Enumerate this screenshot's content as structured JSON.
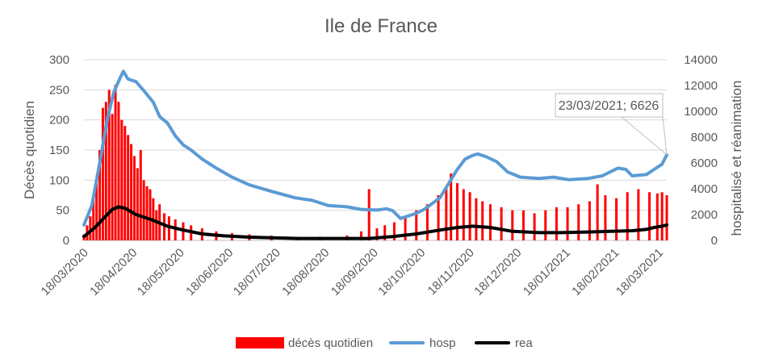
{
  "chart_data": {
    "type": "bar+line",
    "title": "Ile de France",
    "ylabel": "Décès quotidien",
    "y2label": "hospitalisé et réanimation",
    "ylim": [
      0,
      300
    ],
    "y2lim": [
      0,
      14000
    ],
    "yticks": [
      "0",
      "50",
      "100",
      "150",
      "200",
      "250",
      "300"
    ],
    "y2ticks": [
      "0",
      "2000",
      "4000",
      "6000",
      "8000",
      "10000",
      "12000",
      "14000"
    ],
    "xticks": [
      "18/03/2020",
      "18/04/2020",
      "18/05/2020",
      "18/06/2020",
      "18/07/2020",
      "18/08/2020",
      "18/09/2020",
      "18/10/2020",
      "18/11/2020",
      "18/12/2020",
      "18/01/2021",
      "18/02/2021",
      "18/03/2021"
    ],
    "x_start": "2020-03-18",
    "x_end": "2021-03-23",
    "legend": [
      "décès quotidien",
      "hosp",
      "rea"
    ],
    "legend_position": "bottom",
    "annotation": {
      "text": "23/03/2021; 6626",
      "x": "2021-03-23",
      "y": 6626
    },
    "colors": {
      "deces": "#ff0000",
      "hosp": "#5b9bd5",
      "rea": "#000000",
      "axis": "#595959",
      "grid": "#d9d9d9"
    },
    "series": [
      {
        "name": "décès quotidien",
        "axis": "left",
        "style": "bar",
        "points": [
          [
            "2020-03-18",
            10
          ],
          [
            "2020-03-20",
            25
          ],
          [
            "2020-03-22",
            40
          ],
          [
            "2020-03-24",
            70
          ],
          [
            "2020-03-26",
            100
          ],
          [
            "2020-03-28",
            150
          ],
          [
            "2020-03-30",
            220
          ],
          [
            "2020-04-01",
            230
          ],
          [
            "2020-04-03",
            250
          ],
          [
            "2020-04-05",
            210
          ],
          [
            "2020-04-07",
            258
          ],
          [
            "2020-04-09",
            230
          ],
          [
            "2020-04-11",
            200
          ],
          [
            "2020-04-13",
            190
          ],
          [
            "2020-04-15",
            175
          ],
          [
            "2020-04-17",
            160
          ],
          [
            "2020-04-19",
            140
          ],
          [
            "2020-04-21",
            120
          ],
          [
            "2020-04-23",
            150
          ],
          [
            "2020-04-25",
            100
          ],
          [
            "2020-04-27",
            90
          ],
          [
            "2020-04-29",
            85
          ],
          [
            "2020-05-01",
            70
          ],
          [
            "2020-05-03",
            50
          ],
          [
            "2020-05-05",
            60
          ],
          [
            "2020-05-08",
            45
          ],
          [
            "2020-05-11",
            40
          ],
          [
            "2020-05-15",
            35
          ],
          [
            "2020-05-20",
            30
          ],
          [
            "2020-05-25",
            25
          ],
          [
            "2020-06-01",
            20
          ],
          [
            "2020-06-10",
            15
          ],
          [
            "2020-06-20",
            12
          ],
          [
            "2020-07-01",
            10
          ],
          [
            "2020-07-15",
            8
          ],
          [
            "2020-08-01",
            6
          ],
          [
            "2020-08-15",
            6
          ],
          [
            "2020-09-01",
            8
          ],
          [
            "2020-09-10",
            15
          ],
          [
            "2020-09-15",
            85
          ],
          [
            "2020-09-20",
            20
          ],
          [
            "2020-09-25",
            25
          ],
          [
            "2020-10-01",
            30
          ],
          [
            "2020-10-08",
            40
          ],
          [
            "2020-10-15",
            50
          ],
          [
            "2020-10-22",
            60
          ],
          [
            "2020-10-29",
            75
          ],
          [
            "2020-11-03",
            90
          ],
          [
            "2020-11-06",
            111
          ],
          [
            "2020-11-10",
            95
          ],
          [
            "2020-11-14",
            85
          ],
          [
            "2020-11-18",
            80
          ],
          [
            "2020-11-22",
            70
          ],
          [
            "2020-11-26",
            65
          ],
          [
            "2020-12-01",
            60
          ],
          [
            "2020-12-08",
            55
          ],
          [
            "2020-12-15",
            50
          ],
          [
            "2020-12-22",
            50
          ],
          [
            "2020-12-29",
            45
          ],
          [
            "2021-01-05",
            50
          ],
          [
            "2021-01-12",
            55
          ],
          [
            "2021-01-19",
            55
          ],
          [
            "2021-01-26",
            60
          ],
          [
            "2021-02-02",
            65
          ],
          [
            "2021-02-07",
            93
          ],
          [
            "2021-02-12",
            75
          ],
          [
            "2021-02-19",
            70
          ],
          [
            "2021-02-26",
            80
          ],
          [
            "2021-03-05",
            85
          ],
          [
            "2021-03-12",
            80
          ],
          [
            "2021-03-17",
            78
          ],
          [
            "2021-03-20",
            80
          ],
          [
            "2021-03-23",
            75
          ]
        ]
      },
      {
        "name": "hosp",
        "axis": "right",
        "style": "line",
        "points": [
          [
            "2020-03-18",
            1200
          ],
          [
            "2020-03-23",
            2700
          ],
          [
            "2020-03-28",
            6000
          ],
          [
            "2020-04-02",
            9500
          ],
          [
            "2020-04-06",
            11500
          ],
          [
            "2020-04-10",
            12600
          ],
          [
            "2020-04-12",
            13100
          ],
          [
            "2020-04-15",
            12500
          ],
          [
            "2020-04-20",
            12300
          ],
          [
            "2020-04-25",
            11600
          ],
          [
            "2020-05-01",
            10700
          ],
          [
            "2020-05-05",
            9600
          ],
          [
            "2020-05-10",
            9100
          ],
          [
            "2020-05-15",
            8100
          ],
          [
            "2020-05-20",
            7400
          ],
          [
            "2020-05-25",
            7000
          ],
          [
            "2020-06-01",
            6300
          ],
          [
            "2020-06-10",
            5600
          ],
          [
            "2020-06-20",
            4900
          ],
          [
            "2020-07-01",
            4300
          ],
          [
            "2020-07-15",
            3800
          ],
          [
            "2020-07-30",
            3300
          ],
          [
            "2020-08-10",
            3100
          ],
          [
            "2020-08-20",
            2700
          ],
          [
            "2020-09-01",
            2600
          ],
          [
            "2020-09-10",
            2400
          ],
          [
            "2020-09-20",
            2350
          ],
          [
            "2020-09-26",
            2450
          ],
          [
            "2020-09-30",
            2300
          ],
          [
            "2020-10-05",
            1700
          ],
          [
            "2020-10-15",
            2100
          ],
          [
            "2020-10-20",
            2400
          ],
          [
            "2020-10-30",
            3300
          ],
          [
            "2020-11-05",
            4500
          ],
          [
            "2020-11-10",
            5500
          ],
          [
            "2020-11-15",
            6300
          ],
          [
            "2020-11-20",
            6600
          ],
          [
            "2020-11-23",
            6700
          ],
          [
            "2020-11-28",
            6500
          ],
          [
            "2020-12-05",
            6100
          ],
          [
            "2020-12-12",
            5300
          ],
          [
            "2020-12-20",
            4900
          ],
          [
            "2021-01-01",
            4800
          ],
          [
            "2021-01-10",
            4900
          ],
          [
            "2021-01-20",
            4700
          ],
          [
            "2021-02-01",
            4800
          ],
          [
            "2021-02-10",
            5000
          ],
          [
            "2021-02-20",
            5600
          ],
          [
            "2021-02-25",
            5500
          ],
          [
            "2021-03-01",
            5000
          ],
          [
            "2021-03-10",
            5100
          ],
          [
            "2021-03-15",
            5500
          ],
          [
            "2021-03-20",
            5900
          ],
          [
            "2021-03-23",
            6626
          ]
        ]
      },
      {
        "name": "rea",
        "axis": "right",
        "style": "line",
        "points": [
          [
            "2020-03-18",
            300
          ],
          [
            "2020-03-25",
            1000
          ],
          [
            "2020-04-01",
            1900
          ],
          [
            "2020-04-05",
            2400
          ],
          [
            "2020-04-09",
            2600
          ],
          [
            "2020-04-13",
            2500
          ],
          [
            "2020-04-20",
            2000
          ],
          [
            "2020-04-30",
            1600
          ],
          [
            "2020-05-10",
            1100
          ],
          [
            "2020-05-20",
            800
          ],
          [
            "2020-06-01",
            500
          ],
          [
            "2020-06-15",
            350
          ],
          [
            "2020-07-01",
            250
          ],
          [
            "2020-07-15",
            200
          ],
          [
            "2020-08-01",
            150
          ],
          [
            "2020-09-01",
            150
          ],
          [
            "2020-09-15",
            150
          ],
          [
            "2020-09-30",
            300
          ],
          [
            "2020-10-15",
            500
          ],
          [
            "2020-10-30",
            800
          ],
          [
            "2020-11-10",
            1000
          ],
          [
            "2020-11-20",
            1100
          ],
          [
            "2020-12-01",
            1000
          ],
          [
            "2020-12-15",
            700
          ],
          [
            "2021-01-01",
            600
          ],
          [
            "2021-01-15",
            600
          ],
          [
            "2021-02-01",
            650
          ],
          [
            "2021-02-15",
            700
          ],
          [
            "2021-03-01",
            750
          ],
          [
            "2021-03-10",
            850
          ],
          [
            "2021-03-15",
            1000
          ],
          [
            "2021-03-20",
            1100
          ],
          [
            "2021-03-23",
            1200
          ]
        ]
      }
    ]
  }
}
